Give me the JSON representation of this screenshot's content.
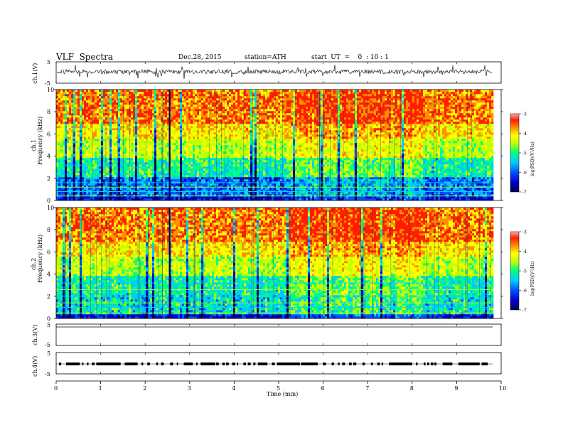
{
  "header": {
    "title": "VLF  Spectra",
    "date": "Dec.28, 2015",
    "station": "station=ATH",
    "start": "start  UT  =    0  : 10 : 1"
  },
  "chart_data": [
    {
      "type": "line",
      "ylabel": "ch.1(V)",
      "ylim": [
        -5,
        5
      ],
      "yticks": [
        "5",
        "-5"
      ],
      "description_free": true
    },
    {
      "type": "heatmap",
      "ylabel": "Frequency  (kHz)",
      "channel_label": "ch.1",
      "ylim": [
        0,
        10
      ],
      "yticks": [
        0,
        2,
        4,
        6,
        8,
        10
      ],
      "colorbar": {
        "label": "log(PSD)(V²/Hz)",
        "range": [
          -7,
          -3
        ],
        "ticks": [
          "-3",
          "-4",
          "-5",
          "-6",
          "-7"
        ]
      }
    },
    {
      "type": "heatmap",
      "ylabel": "Frequency  (kHz)",
      "channel_label": "ch.2",
      "ylim": [
        0,
        10
      ],
      "yticks": [
        0,
        2,
        4,
        6,
        8,
        10
      ],
      "colorbar": {
        "label": "log(PSD)(V²/Hz)",
        "range": [
          -7,
          -3
        ],
        "ticks": [
          "-3",
          "-4",
          "-5",
          "-6",
          "-7"
        ]
      }
    },
    {
      "type": "line",
      "ylabel": "ch.3(V)",
      "ylim": [
        -5,
        5
      ],
      "yticks": [
        "5",
        "-5"
      ]
    },
    {
      "type": "line",
      "ylabel": "ch.4(V)",
      "ylim": [
        -5,
        5
      ],
      "yticks": [
        "5",
        "-5"
      ]
    }
  ],
  "xaxis": {
    "label": "Time  (min)",
    "xlim": [
      0,
      10
    ],
    "ticks": [
      "0",
      "1",
      "2",
      "3",
      "4",
      "5",
      "6",
      "7",
      "8",
      "9",
      "10"
    ],
    "data_end": 9.8
  },
  "colors": {
    "scale": [
      "#000050",
      "#0000c8",
      "#0050ff",
      "#00c8ff",
      "#00ff80",
      "#c0ff00",
      "#ffff00",
      "#ff9000",
      "#ff1e00",
      "#ffaaaa"
    ]
  }
}
